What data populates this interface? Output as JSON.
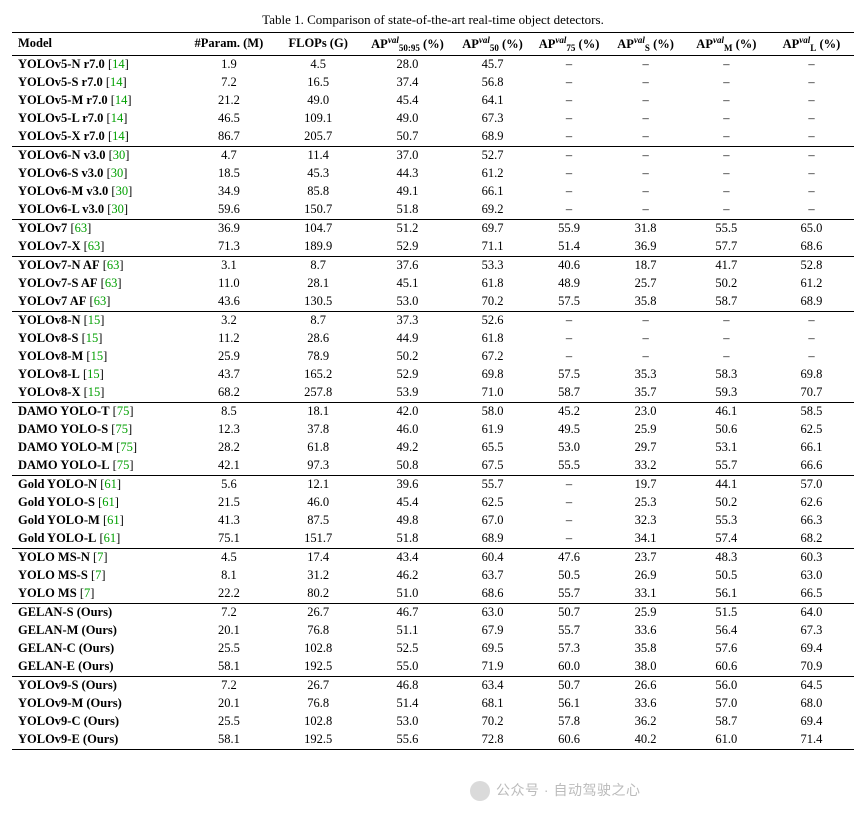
{
  "caption": "Table 1. Comparison of state-of-the-art real-time object detectors.",
  "columns": [
    {
      "label": "Model"
    },
    {
      "label": "#Param. (M)"
    },
    {
      "label": "FLOPs (G)"
    },
    {
      "html": "AP",
      "sup": "val",
      "sub": "50:95",
      "suffix": " (%)"
    },
    {
      "html": "AP",
      "sup": "val",
      "sub": "50",
      "suffix": " (%)"
    },
    {
      "html": "AP",
      "sup": "val",
      "sub": "75",
      "suffix": " (%)"
    },
    {
      "html": "AP",
      "sup": "val",
      "sub": "S",
      "suffix": " (%)"
    },
    {
      "html": "AP",
      "sup": "val",
      "sub": "M",
      "suffix": " (%)"
    },
    {
      "html": "AP",
      "sup": "val",
      "sub": "L",
      "suffix": " (%)"
    }
  ],
  "groups": [
    {
      "rows": [
        {
          "name": "YOLOv5-N r7.0",
          "cite": "14",
          "v": [
            "1.9",
            "4.5",
            "28.0",
            "45.7",
            "–",
            "–",
            "–",
            "–"
          ]
        },
        {
          "name": "YOLOv5-S r7.0",
          "cite": "14",
          "v": [
            "7.2",
            "16.5",
            "37.4",
            "56.8",
            "–",
            "–",
            "–",
            "–"
          ]
        },
        {
          "name": "YOLOv5-M r7.0",
          "cite": "14",
          "v": [
            "21.2",
            "49.0",
            "45.4",
            "64.1",
            "–",
            "–",
            "–",
            "–"
          ]
        },
        {
          "name": "YOLOv5-L r7.0",
          "cite": "14",
          "v": [
            "46.5",
            "109.1",
            "49.0",
            "67.3",
            "–",
            "–",
            "–",
            "–"
          ]
        },
        {
          "name": "YOLOv5-X r7.0",
          "cite": "14",
          "v": [
            "86.7",
            "205.7",
            "50.7",
            "68.9",
            "–",
            "–",
            "–",
            "–"
          ]
        }
      ]
    },
    {
      "rows": [
        {
          "name": "YOLOv6-N v3.0",
          "cite": "30",
          "v": [
            "4.7",
            "11.4",
            "37.0",
            "52.7",
            "–",
            "–",
            "–",
            "–"
          ]
        },
        {
          "name": "YOLOv6-S v3.0",
          "cite": "30",
          "v": [
            "18.5",
            "45.3",
            "44.3",
            "61.2",
            "–",
            "–",
            "–",
            "–"
          ]
        },
        {
          "name": "YOLOv6-M v3.0",
          "cite": "30",
          "v": [
            "34.9",
            "85.8",
            "49.1",
            "66.1",
            "–",
            "–",
            "–",
            "–"
          ]
        },
        {
          "name": "YOLOv6-L v3.0",
          "cite": "30",
          "v": [
            "59.6",
            "150.7",
            "51.8",
            "69.2",
            "–",
            "–",
            "–",
            "–"
          ]
        }
      ]
    },
    {
      "rows": [
        {
          "name": "YOLOv7",
          "cite": "63",
          "v": [
            "36.9",
            "104.7",
            "51.2",
            "69.7",
            "55.9",
            "31.8",
            "55.5",
            "65.0"
          ]
        },
        {
          "name": "YOLOv7-X",
          "cite": "63",
          "v": [
            "71.3",
            "189.9",
            "52.9",
            "71.1",
            "51.4",
            "36.9",
            "57.7",
            "68.6"
          ]
        }
      ]
    },
    {
      "rows": [
        {
          "name": "YOLOv7-N AF",
          "cite": "63",
          "v": [
            "3.1",
            "8.7",
            "37.6",
            "53.3",
            "40.6",
            "18.7",
            "41.7",
            "52.8"
          ]
        },
        {
          "name": "YOLOv7-S AF",
          "cite": "63",
          "v": [
            "11.0",
            "28.1",
            "45.1",
            "61.8",
            "48.9",
            "25.7",
            "50.2",
            "61.2"
          ]
        },
        {
          "name": "YOLOv7 AF",
          "cite": "63",
          "v": [
            "43.6",
            "130.5",
            "53.0",
            "70.2",
            "57.5",
            "35.8",
            "58.7",
            "68.9"
          ]
        }
      ]
    },
    {
      "rows": [
        {
          "name": "YOLOv8-N",
          "cite": "15",
          "v": [
            "3.2",
            "8.7",
            "37.3",
            "52.6",
            "–",
            "–",
            "–",
            "–"
          ]
        },
        {
          "name": "YOLOv8-S",
          "cite": "15",
          "v": [
            "11.2",
            "28.6",
            "44.9",
            "61.8",
            "–",
            "–",
            "–",
            "–"
          ]
        },
        {
          "name": "YOLOv8-M",
          "cite": "15",
          "v": [
            "25.9",
            "78.9",
            "50.2",
            "67.2",
            "–",
            "–",
            "–",
            "–"
          ]
        },
        {
          "name": "YOLOv8-L",
          "cite": "15",
          "v": [
            "43.7",
            "165.2",
            "52.9",
            "69.8",
            "57.5",
            "35.3",
            "58.3",
            "69.8"
          ]
        },
        {
          "name": "YOLOv8-X",
          "cite": "15",
          "v": [
            "68.2",
            "257.8",
            "53.9",
            "71.0",
            "58.7",
            "35.7",
            "59.3",
            "70.7"
          ]
        }
      ]
    },
    {
      "rows": [
        {
          "name": "DAMO YOLO-T",
          "cite": "75",
          "v": [
            "8.5",
            "18.1",
            "42.0",
            "58.0",
            "45.2",
            "23.0",
            "46.1",
            "58.5"
          ]
        },
        {
          "name": "DAMO YOLO-S",
          "cite": "75",
          "v": [
            "12.3",
            "37.8",
            "46.0",
            "61.9",
            "49.5",
            "25.9",
            "50.6",
            "62.5"
          ]
        },
        {
          "name": "DAMO YOLO-M",
          "cite": "75",
          "v": [
            "28.2",
            "61.8",
            "49.2",
            "65.5",
            "53.0",
            "29.7",
            "53.1",
            "66.1"
          ]
        },
        {
          "name": "DAMO YOLO-L",
          "cite": "75",
          "v": [
            "42.1",
            "97.3",
            "50.8",
            "67.5",
            "55.5",
            "33.2",
            "55.7",
            "66.6"
          ]
        }
      ]
    },
    {
      "rows": [
        {
          "name": "Gold YOLO-N",
          "cite": "61",
          "v": [
            "5.6",
            "12.1",
            "39.6",
            "55.7",
            "–",
            "19.7",
            "44.1",
            "57.0"
          ]
        },
        {
          "name": "Gold YOLO-S",
          "cite": "61",
          "v": [
            "21.5",
            "46.0",
            "45.4",
            "62.5",
            "–",
            "25.3",
            "50.2",
            "62.6"
          ]
        },
        {
          "name": "Gold YOLO-M",
          "cite": "61",
          "v": [
            "41.3",
            "87.5",
            "49.8",
            "67.0",
            "–",
            "32.3",
            "55.3",
            "66.3"
          ]
        },
        {
          "name": "Gold YOLO-L",
          "cite": "61",
          "v": [
            "75.1",
            "151.7",
            "51.8",
            "68.9",
            "–",
            "34.1",
            "57.4",
            "68.2"
          ]
        }
      ]
    },
    {
      "rows": [
        {
          "name": "YOLO MS-N",
          "cite": "7",
          "v": [
            "4.5",
            "17.4",
            "43.4",
            "60.4",
            "47.6",
            "23.7",
            "48.3",
            "60.3"
          ]
        },
        {
          "name": "YOLO MS-S",
          "cite": "7",
          "v": [
            "8.1",
            "31.2",
            "46.2",
            "63.7",
            "50.5",
            "26.9",
            "50.5",
            "63.0"
          ]
        },
        {
          "name": "YOLO MS",
          "cite": "7",
          "v": [
            "22.2",
            "80.2",
            "51.0",
            "68.6",
            "55.7",
            "33.1",
            "56.1",
            "66.5"
          ]
        }
      ]
    },
    {
      "rows": [
        {
          "name": "GELAN-S (Ours)",
          "v": [
            "7.2",
            "26.7",
            "46.7",
            "63.0",
            "50.7",
            "25.9",
            "51.5",
            "64.0"
          ]
        },
        {
          "name": "GELAN-M (Ours)",
          "v": [
            "20.1",
            "76.8",
            "51.1",
            "67.9",
            "55.7",
            "33.6",
            "56.4",
            "67.3"
          ]
        },
        {
          "name": "GELAN-C (Ours)",
          "v": [
            "25.5",
            "102.8",
            "52.5",
            "69.5",
            "57.3",
            "35.8",
            "57.6",
            "69.4"
          ]
        },
        {
          "name": "GELAN-E (Ours)",
          "v": [
            "58.1",
            "192.5",
            "55.0",
            "71.9",
            "60.0",
            "38.0",
            "60.6",
            "70.9"
          ]
        }
      ]
    },
    {
      "rows": [
        {
          "name": "YOLOv9-S (Ours)",
          "v": [
            "7.2",
            "26.7",
            "46.8",
            "63.4",
            "50.7",
            "26.6",
            "56.0",
            "64.5"
          ]
        },
        {
          "name": "YOLOv9-M (Ours)",
          "v": [
            "20.1",
            "76.8",
            "51.4",
            "68.1",
            "56.1",
            "33.6",
            "57.0",
            "68.0"
          ]
        },
        {
          "name": "YOLOv9-C (Ours)",
          "v": [
            "25.5",
            "102.8",
            "53.0",
            "70.2",
            "57.8",
            "36.2",
            "58.7",
            "69.4"
          ]
        },
        {
          "name": "YOLOv9-E (Ours)",
          "v": [
            "58.1",
            "192.5",
            "55.6",
            "72.8",
            "60.6",
            "40.2",
            "61.0",
            "71.4"
          ]
        }
      ]
    }
  ],
  "cite_color": "#00a000",
  "watermark": "公众号 · 自动驾驶之心"
}
